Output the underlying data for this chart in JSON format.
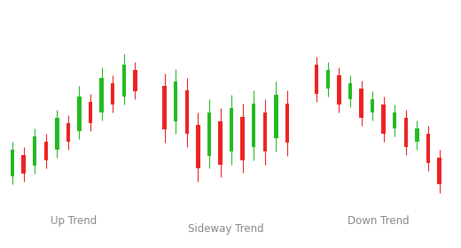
{
  "background_color": "#ffffff",
  "green_color": "#22bb22",
  "red_color": "#ee2222",
  "label_color": "#888888",
  "label_fontsize": 8.5,
  "up_trend": {
    "label": "Up Trend",
    "candles": [
      {
        "x": 0,
        "open": 1.0,
        "close": 2.0,
        "high": 2.3,
        "low": 0.7
      },
      {
        "x": 1,
        "open": 1.8,
        "close": 1.1,
        "high": 2.1,
        "low": 0.8
      },
      {
        "x": 2,
        "open": 1.4,
        "close": 2.5,
        "high": 2.8,
        "low": 1.1
      },
      {
        "x": 3,
        "open": 2.3,
        "close": 1.6,
        "high": 2.6,
        "low": 1.3
      },
      {
        "x": 4,
        "open": 2.0,
        "close": 3.2,
        "high": 3.5,
        "low": 1.7
      },
      {
        "x": 5,
        "open": 3.0,
        "close": 2.3,
        "high": 3.3,
        "low": 2.0
      },
      {
        "x": 6,
        "open": 2.7,
        "close": 4.0,
        "high": 4.4,
        "low": 2.4
      },
      {
        "x": 7,
        "open": 3.8,
        "close": 3.0,
        "high": 4.1,
        "low": 2.7
      },
      {
        "x": 8,
        "open": 3.4,
        "close": 4.7,
        "high": 5.1,
        "low": 3.1
      },
      {
        "x": 9,
        "open": 4.5,
        "close": 3.7,
        "high": 4.8,
        "low": 3.4
      },
      {
        "x": 10,
        "open": 4.0,
        "close": 5.2,
        "high": 5.6,
        "low": 3.7
      },
      {
        "x": 11,
        "open": 5.0,
        "close": 4.2,
        "high": 5.3,
        "low": 3.9
      }
    ]
  },
  "sideway_trend": {
    "label": "Sideway Trend",
    "candles": [
      {
        "x": 0,
        "open": 3.2,
        "close": 2.2,
        "high": 3.5,
        "low": 1.9
      },
      {
        "x": 1,
        "open": 2.4,
        "close": 3.3,
        "high": 3.6,
        "low": 2.1
      },
      {
        "x": 2,
        "open": 3.1,
        "close": 2.1,
        "high": 3.4,
        "low": 1.8
      },
      {
        "x": 3,
        "open": 2.3,
        "close": 1.3,
        "high": 2.6,
        "low": 1.0
      },
      {
        "x": 4,
        "open": 1.6,
        "close": 2.6,
        "high": 2.9,
        "low": 1.3
      },
      {
        "x": 5,
        "open": 2.4,
        "close": 1.4,
        "high": 2.7,
        "low": 1.1
      },
      {
        "x": 6,
        "open": 1.7,
        "close": 2.7,
        "high": 3.0,
        "low": 1.4
      },
      {
        "x": 7,
        "open": 2.5,
        "close": 1.5,
        "high": 2.8,
        "low": 1.2
      },
      {
        "x": 8,
        "open": 1.8,
        "close": 2.8,
        "high": 3.1,
        "low": 1.5
      },
      {
        "x": 9,
        "open": 2.6,
        "close": 1.7,
        "high": 2.9,
        "low": 1.4
      },
      {
        "x": 10,
        "open": 2.0,
        "close": 3.0,
        "high": 3.3,
        "low": 1.7
      },
      {
        "x": 11,
        "open": 2.8,
        "close": 1.9,
        "high": 3.1,
        "low": 1.6
      }
    ]
  },
  "down_trend": {
    "label": "Down Trend",
    "candles": [
      {
        "x": 0,
        "open": 5.2,
        "close": 4.1,
        "high": 5.5,
        "low": 3.8
      },
      {
        "x": 1,
        "open": 4.3,
        "close": 5.0,
        "high": 5.3,
        "low": 4.0
      },
      {
        "x": 2,
        "open": 4.8,
        "close": 3.7,
        "high": 5.1,
        "low": 3.4
      },
      {
        "x": 3,
        "open": 3.9,
        "close": 4.5,
        "high": 4.8,
        "low": 3.6
      },
      {
        "x": 4,
        "open": 4.3,
        "close": 3.2,
        "high": 4.6,
        "low": 2.9
      },
      {
        "x": 5,
        "open": 3.4,
        "close": 3.9,
        "high": 4.2,
        "low": 3.1
      },
      {
        "x": 6,
        "open": 3.7,
        "close": 2.6,
        "high": 4.0,
        "low": 2.3
      },
      {
        "x": 7,
        "open": 2.8,
        "close": 3.4,
        "high": 3.7,
        "low": 2.5
      },
      {
        "x": 8,
        "open": 3.2,
        "close": 2.1,
        "high": 3.5,
        "low": 1.8
      },
      {
        "x": 9,
        "open": 2.3,
        "close": 2.8,
        "high": 3.1,
        "low": 2.0
      },
      {
        "x": 10,
        "open": 2.6,
        "close": 1.5,
        "high": 2.9,
        "low": 1.2
      },
      {
        "x": 11,
        "open": 1.7,
        "close": 0.7,
        "high": 2.0,
        "low": 0.4
      }
    ]
  }
}
